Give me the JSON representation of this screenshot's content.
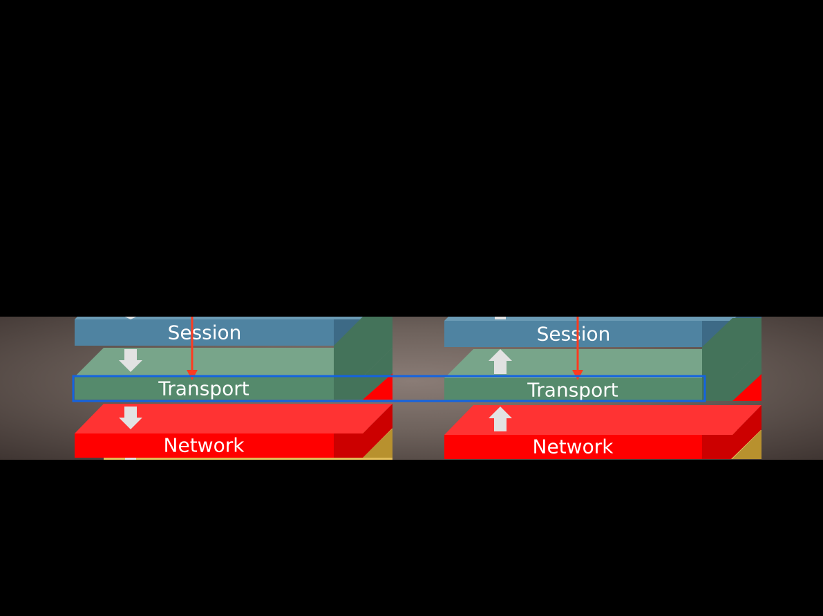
{
  "stacks": [
    {
      "id": "sender",
      "direction": "down",
      "layers": [
        {
          "key": "session",
          "label": "Session"
        },
        {
          "key": "transport",
          "label": "Transport"
        },
        {
          "key": "network",
          "label": "Network"
        }
      ]
    },
    {
      "id": "receiver",
      "direction": "up",
      "layers": [
        {
          "key": "session",
          "label": "Session"
        },
        {
          "key": "transport",
          "label": "Transport"
        },
        {
          "key": "network",
          "label": "Network"
        }
      ]
    }
  ],
  "colors": {
    "session_front": "#4f83a1",
    "session_top": "#6b9bb5",
    "session_side": "#3d6a86",
    "transport_front": "#558a6c",
    "transport_top": "#78a58a",
    "transport_side": "#44735a",
    "network_front": "#ff0000",
    "network_top": "#ff3333",
    "network_side": "#cc0000",
    "data_link_top": "#e3bd5a",
    "data_link_side": "#b8912e",
    "pointer_line": "#ff3b1f",
    "highlight_frame": "#1463e0",
    "flow_arrow": "#e2e2e2"
  }
}
